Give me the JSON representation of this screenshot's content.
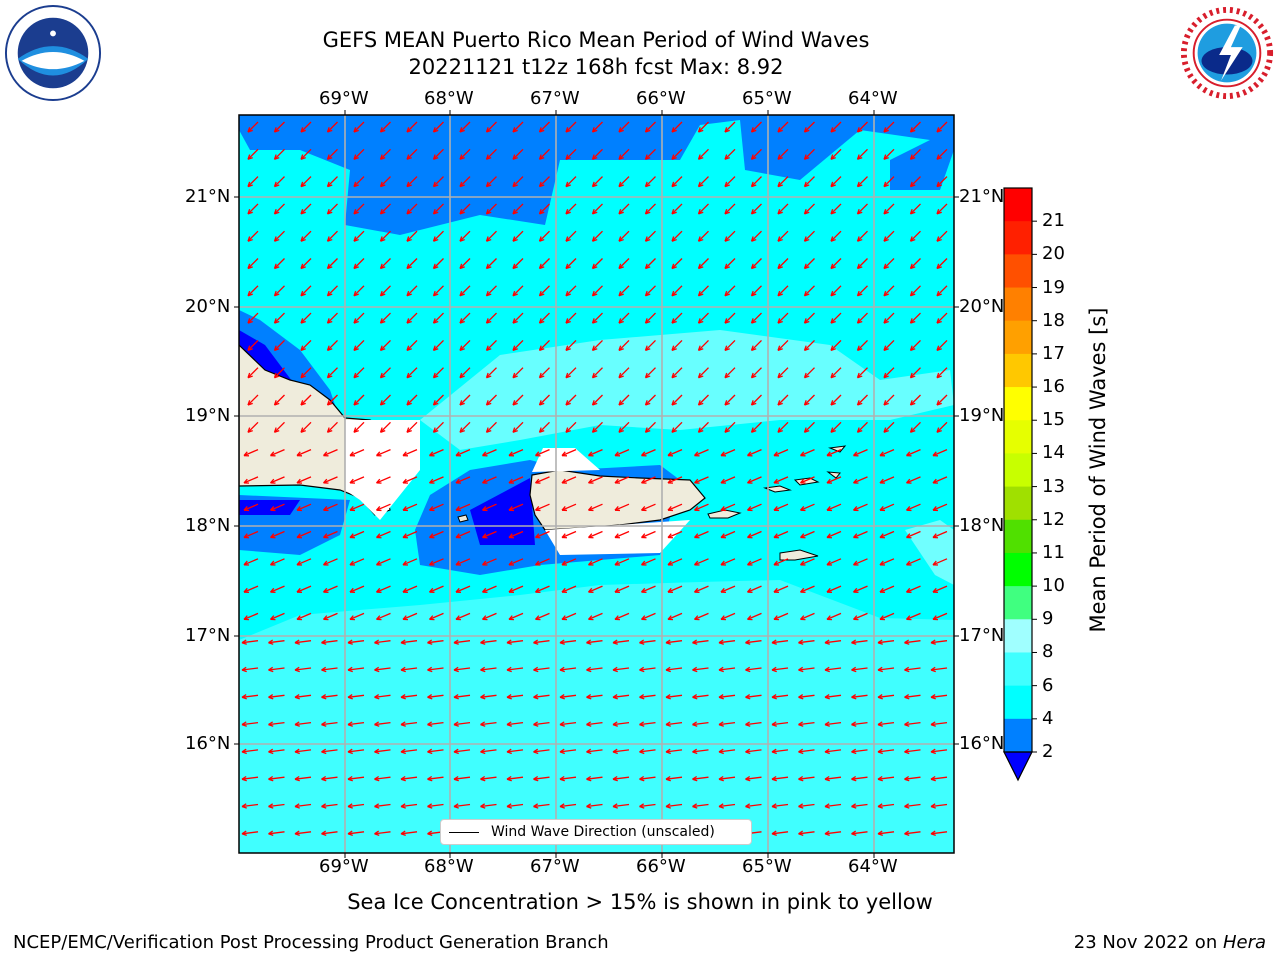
{
  "header": {
    "title_line1": "GEFS MEAN Puerto Rico Mean Period of Wind Waves",
    "title_line2": "20221121 t12z 168h fcst   Max: 8.92"
  },
  "map": {
    "lon_ticks": [
      "69°W",
      "68°W",
      "67°W",
      "66°W",
      "65°W",
      "64°W"
    ],
    "lat_ticks": [
      "21°N",
      "20°N",
      "19°N",
      "18°N",
      "17°N",
      "16°N"
    ],
    "legend_label": "Wind Wave Direction (unscaled)",
    "ocean_color": "#00ffff",
    "land_color": "#efecdc",
    "arrow_color": "#ff0000"
  },
  "colorbar": {
    "label": "Mean Period of Wind Waves [s]",
    "ticks": [
      "2",
      "4",
      "6",
      "8",
      "9",
      "10",
      "11",
      "12",
      "13",
      "14",
      "15",
      "16",
      "17",
      "18",
      "19",
      "20",
      "21"
    ],
    "colors": [
      "#0080ff",
      "#00ffff",
      "#40ffff",
      "#a0ffff",
      "#40ff80",
      "#00ff00",
      "#50e000",
      "#a0e000",
      "#c8ff00",
      "#e6ff00",
      "#ffff00",
      "#ffc800",
      "#ffa000",
      "#ff8000",
      "#ff5000",
      "#ff2000",
      "#ff0000"
    ],
    "under_color": "#0000ff"
  },
  "footer": {
    "sea_ice_note": "Sea Ice Concentration > 15% is shown in pink to yellow",
    "left": "NCEP/EMC/Verification Post Processing Product Generation Branch",
    "right_date": "23 Nov 2022 on ",
    "right_host": "Hera"
  }
}
